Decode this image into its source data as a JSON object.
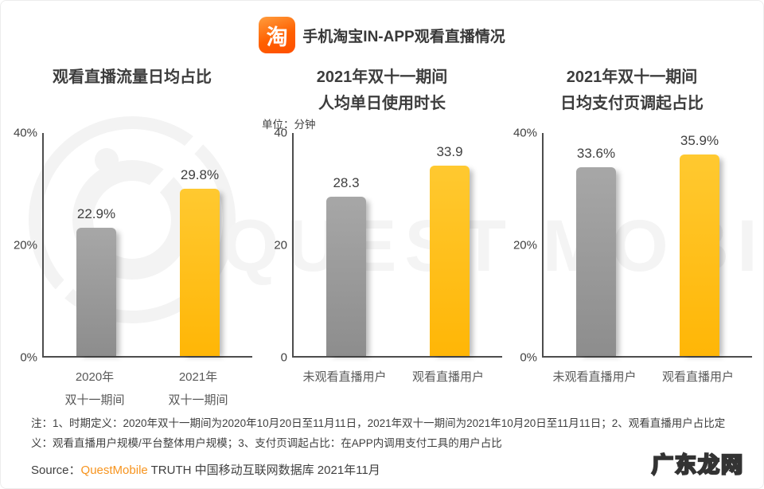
{
  "header": {
    "title": "手机淘宝IN-APP观看直播情况",
    "logo_glyph": "淘"
  },
  "chart_data": [
    {
      "type": "bar",
      "title_lines": [
        "观看直播流量日均占比"
      ],
      "unit": "",
      "yticks": [
        "40%",
        "20%",
        "0%"
      ],
      "ylim": [
        0,
        40
      ],
      "categories": [
        [
          "2020年",
          "双十一期间"
        ],
        [
          "2021年",
          "双十一期间"
        ]
      ],
      "values": [
        22.9,
        29.8
      ],
      "value_labels": [
        "22.9%",
        "29.8%"
      ],
      "bar_styles": [
        "gray",
        "yellow"
      ],
      "grid": false,
      "legend": "none"
    },
    {
      "type": "bar",
      "title_lines": [
        "2021年双十一期间",
        "人均单日使用时长"
      ],
      "unit": "单位：分钟",
      "yticks": [
        "40",
        "20",
        "0"
      ],
      "ylim": [
        0,
        40
      ],
      "categories": [
        [
          "未观看直播用户"
        ],
        [
          "观看直播用户"
        ]
      ],
      "values": [
        28.3,
        33.9
      ],
      "value_labels": [
        "28.3",
        "33.9"
      ],
      "bar_styles": [
        "gray",
        "yellow"
      ],
      "grid": false,
      "legend": "none"
    },
    {
      "type": "bar",
      "title_lines": [
        "2021年双十一期间",
        "日均支付页调起占比"
      ],
      "unit": "",
      "yticks": [
        "40%",
        "20%",
        "0%"
      ],
      "ylim": [
        0,
        40
      ],
      "categories": [
        [
          "未观看直播用户"
        ],
        [
          "观看直播用户"
        ]
      ],
      "values": [
        33.6,
        35.9
      ],
      "value_labels": [
        "33.6%",
        "35.9%"
      ],
      "bar_styles": [
        "gray",
        "yellow"
      ],
      "grid": false,
      "legend": "none"
    }
  ],
  "watermark": {
    "text": "QUEST MOBILE"
  },
  "footnote": "注：1、时期定义：2020年双十一期间为2020年10月20日至11月11日，2021年双十一期间为2021年10月20日至11月11日；2、观看直播用户占比定义：观看直播用户规模/平台整体用户规模；3、支付页调起占比：在APP内调用支付工具的用户占比",
  "source": {
    "label": "Source：",
    "brand": "QuestMobile",
    "rest": " TRUTH 中国移动互联网数据库 2021年11月"
  },
  "corner_brand": "广东龙网",
  "colors": {
    "bar_gray": "#979797",
    "bar_yellow": "#ffbe14",
    "taobao_orange": "#ff5500",
    "source_brand_orange": "#f7941e",
    "watermark_gray": "#f3f3f3",
    "text_dark": "#3d3d3d",
    "text_gray": "#595959"
  }
}
